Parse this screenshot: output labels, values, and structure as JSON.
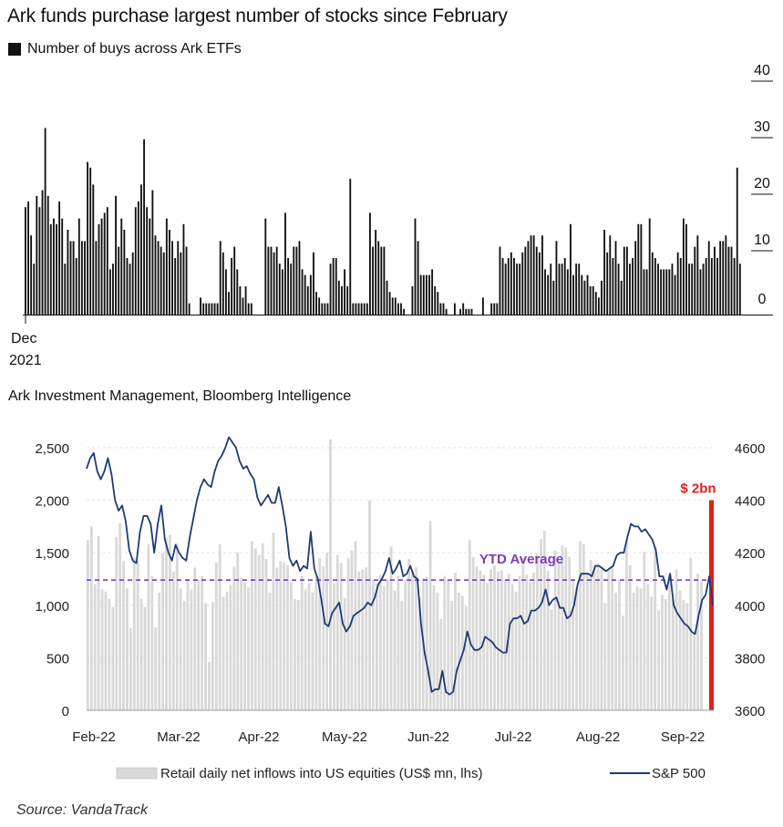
{
  "title": "Ark funds purchase largest number of stocks since February",
  "chart1_legend": "Number of buys across Ark ETFs",
  "chart1_source": "Ark Investment Management, Bloomberg Intelligence",
  "chart2_source": "Source: VandaTrack",
  "colors": {
    "bar1": "#111111",
    "bar2": "#d9d9d9",
    "line": "#1f3b73",
    "avg": "#7a3fb6",
    "highlight": "#e0201b"
  },
  "chart_data": [
    {
      "type": "bar",
      "series": [
        {
          "name": "Number of buys across Ark ETFs",
          "values": [
            19,
            20,
            14,
            9,
            21,
            19,
            22,
            33,
            21,
            16,
            17,
            16,
            20,
            17,
            9,
            15,
            13,
            13,
            10,
            17,
            13,
            13,
            27,
            26,
            23,
            13,
            16,
            17,
            18,
            19,
            8,
            9,
            21,
            12,
            17,
            15,
            10,
            9,
            11,
            19,
            20,
            23,
            31,
            19,
            17,
            22,
            14,
            13,
            12,
            11,
            17,
            15,
            13,
            10,
            13,
            11,
            16,
            12,
            2,
            0,
            0,
            0,
            3,
            2,
            2,
            2,
            2,
            2,
            2,
            13,
            11,
            8,
            4,
            10,
            12,
            8,
            5,
            3,
            5,
            2,
            2,
            0,
            0,
            0,
            0,
            17,
            12,
            12,
            11,
            12,
            9,
            8,
            18,
            10,
            9,
            12,
            12,
            13,
            8,
            7,
            5,
            7,
            11,
            4,
            3,
            2,
            2,
            2,
            9,
            10,
            10,
            6,
            5,
            8,
            5,
            24,
            2,
            2,
            2,
            2,
            2,
            2,
            18,
            12,
            15,
            13,
            12,
            12,
            6,
            4,
            3,
            3,
            2,
            2,
            1,
            0,
            0,
            5,
            17,
            13,
            7,
            7,
            7,
            7,
            8,
            5,
            4,
            2,
            2,
            1,
            0,
            0,
            2,
            0,
            1,
            2,
            1,
            1,
            1,
            0,
            0,
            0,
            3,
            0,
            0,
            2,
            2,
            2,
            12,
            10,
            9,
            10,
            11,
            10,
            9,
            9,
            11,
            12,
            13,
            14,
            14,
            12,
            11,
            14,
            8,
            7,
            9,
            6,
            13,
            9,
            9,
            10,
            8,
            16,
            7,
            9,
            9,
            7,
            6,
            7,
            5,
            5,
            4,
            3,
            6,
            15,
            11,
            14,
            10,
            13,
            9,
            6,
            12,
            12,
            9,
            10,
            13,
            16,
            16,
            8,
            8,
            17,
            11,
            10,
            9,
            8,
            8,
            8,
            8,
            9,
            7,
            11,
            10,
            17,
            16,
            9,
            9,
            12,
            14,
            8,
            9,
            10,
            13,
            10,
            12,
            10,
            13,
            13,
            14,
            12,
            12,
            10,
            26,
            9
          ]
        }
      ],
      "yticks": [
        0,
        10,
        20,
        30,
        40
      ],
      "ylim": [
        0,
        40
      ],
      "xlabel_month": "Dec",
      "xlabel_year": "2021",
      "grid": false
    },
    {
      "type": "bar+line",
      "ymin_left": 0,
      "ymax_left": 2500,
      "yticks_left": [
        "0",
        "500",
        "1,000",
        "1,500",
        "2,000",
        "2,500"
      ],
      "ymin_right": 3600,
      "ymax_right": 4600,
      "yticks_right": [
        "3600",
        "3800",
        "4000",
        "4200",
        "4400",
        "4600"
      ],
      "xticks": [
        "Feb-22",
        "Mar-22",
        "Apr-22",
        "May-22",
        "Jun-22",
        "Jul-22",
        "Aug-22",
        "Sep-22"
      ],
      "bars": {
        "name": "Retail daily net inflows into US equities (US$ mn, lhs)",
        "values": [
          1620,
          1750,
          1200,
          1660,
          1150,
          1130,
          1060,
          980,
          1650,
          1780,
          1420,
          1160,
          780,
          1450,
          1420,
          1060,
          980,
          1580,
          1280,
          790,
          1120,
          1500,
          1640,
          1670,
          1320,
          1590,
          1160,
          1040,
          1250,
          1150,
          1360,
          1240,
          1280,
          1020,
          460,
          1030,
          1410,
          1580,
          1080,
          1130,
          1190,
          1370,
          1500,
          1260,
          1220,
          1170,
          1610,
          1540,
          1480,
          1590,
          1440,
          1120,
          1690,
          1360,
          1420,
          1410,
          1380,
          1220,
          1060,
          1050,
          1280,
          1150,
          1210,
          1120,
          1280,
          1450,
          1370,
          1500,
          2580,
          1210,
          1480,
          1400,
          1070,
          1450,
          1520,
          1610,
          1320,
          1340,
          1360,
          2000,
          1240,
          1210,
          1290,
          1180,
          1240,
          1560,
          1140,
          1280,
          1040,
          1230,
          1440,
          1330,
          1360,
          1080,
          1260,
          1270,
          1800,
          1190,
          1120,
          870,
          1280,
          1240,
          1040,
          1310,
          1120,
          1090,
          990,
          1620,
          1460,
          1370,
          1330,
          1290,
          1210,
          1340,
          1380,
          1320,
          1330,
          1240,
          1300,
          1200,
          1130,
          1280,
          1450,
          1290,
          1220,
          1310,
          1490,
          1630,
          1710,
          1330,
          960,
          1520,
          1420,
          1570,
          1550,
          1460,
          1240,
          1170,
          1610,
          1580,
          1290,
          1430,
          1390,
          1400,
          1340,
          1020,
          1330,
          1370,
          1120,
          1240,
          900,
          1620,
          1380,
          1120,
          1180,
          1160,
          1510,
          1200,
          1080,
          1550,
          950,
          1100,
          1060,
          1290,
          1060,
          1340,
          1140,
          1050,
          1020,
          1450,
          710,
          1300,
          1230
        ],
        "highlight": {
          "label": "$ 2bn",
          "value": 2000
        }
      },
      "line": {
        "name": "S&P 500",
        "values": [
          4520,
          4560,
          4580,
          4510,
          4480,
          4510,
          4560,
          4500,
          4400,
          4360,
          4380,
          4320,
          4210,
          4170,
          4160,
          4280,
          4340,
          4340,
          4310,
          4200,
          4310,
          4380,
          4250,
          4200,
          4170,
          4230,
          4200,
          4180,
          4170,
          4260,
          4330,
          4400,
          4450,
          4480,
          4460,
          4450,
          4510,
          4550,
          4570,
          4600,
          4640,
          4620,
          4600,
          4550,
          4520,
          4530,
          4500,
          4480,
          4410,
          4380,
          4400,
          4420,
          4390,
          4390,
          4450,
          4380,
          4300,
          4180,
          4150,
          4170,
          4130,
          4150,
          4140,
          4280,
          4140,
          4100,
          4020,
          3930,
          3920,
          3970,
          3990,
          4010,
          3930,
          3900,
          3920,
          3960,
          3970,
          3980,
          3990,
          4010,
          4000,
          4030,
          4080,
          4100,
          4130,
          4180,
          4120,
          4140,
          4170,
          4110,
          4120,
          4150,
          4110,
          4100,
          3930,
          3820,
          3750,
          3670,
          3680,
          3680,
          3750,
          3670,
          3660,
          3670,
          3750,
          3790,
          3830,
          3900,
          3850,
          3830,
          3830,
          3840,
          3880,
          3870,
          3860,
          3840,
          3830,
          3820,
          3820,
          3930,
          3950,
          3950,
          3960,
          3930,
          3940,
          3980,
          3980,
          3990,
          4010,
          4060,
          4000,
          4020,
          4030,
          3990,
          3990,
          3950,
          3960,
          4000,
          4080,
          4120,
          4120,
          4120,
          4110,
          4150,
          4150,
          4140,
          4130,
          4140,
          4150,
          4190,
          4200,
          4200,
          4260,
          4310,
          4300,
          4300,
          4280,
          4290,
          4270,
          4250,
          4210,
          4110,
          4110,
          4060,
          4120,
          4000,
          3970,
          3950,
          3930,
          3920,
          3900,
          3890,
          3960,
          4020,
          4040,
          4110,
          4000
        ]
      },
      "avg": {
        "label": "YTD Average",
        "value": 1240
      },
      "grid": true,
      "legend_position": "bottom"
    }
  ]
}
